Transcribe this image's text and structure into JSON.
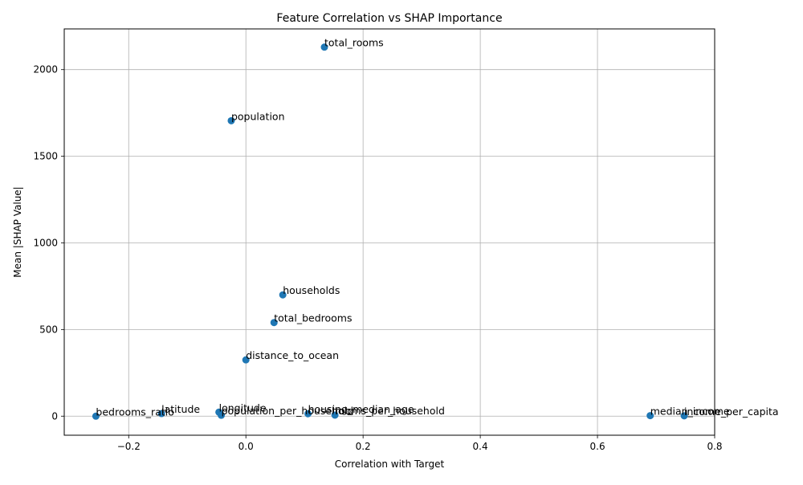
{
  "chart_data": {
    "type": "scatter",
    "title": "Feature Correlation vs SHAP Importance",
    "xlabel": "Correlation with Target",
    "ylabel": "Mean |SHAP Value|",
    "xlim": [
      -0.31,
      0.8
    ],
    "ylim": [
      -110,
      2235
    ],
    "xticks": [
      -0.2,
      0.0,
      0.2,
      0.4,
      0.6,
      0.8
    ],
    "xtick_labels": [
      "−0.2",
      "0.0",
      "0.2",
      "0.4",
      "0.6",
      "0.8"
    ],
    "yticks": [
      0,
      500,
      1000,
      1500,
      2000
    ],
    "ytick_labels": [
      "0",
      "500",
      "1000",
      "1500",
      "2000"
    ],
    "grid": true,
    "marker_color": "#1f77b4",
    "points": [
      {
        "label": "total_rooms",
        "x": 0.134,
        "y": 2130
      },
      {
        "label": "population",
        "x": -0.025,
        "y": 1705
      },
      {
        "label": "households",
        "x": 0.063,
        "y": 700
      },
      {
        "label": "total_bedrooms",
        "x": 0.048,
        "y": 540
      },
      {
        "label": "distance_to_ocean",
        "x": 0.0,
        "y": 325
      },
      {
        "label": "longitude",
        "x": -0.046,
        "y": 23
      },
      {
        "label": "latitude",
        "x": -0.144,
        "y": 15
      },
      {
        "label": "population_per_household",
        "x": -0.042,
        "y": 5
      },
      {
        "label": "housing_median_age",
        "x": 0.106,
        "y": 14
      },
      {
        "label": "rooms_per_household",
        "x": 0.152,
        "y": 6
      },
      {
        "label": "bedrooms_ratio",
        "x": -0.256,
        "y": 0
      },
      {
        "label": "median_income",
        "x": 0.69,
        "y": 3
      },
      {
        "label": "income_per_capita",
        "x": 0.748,
        "y": 2
      }
    ]
  }
}
